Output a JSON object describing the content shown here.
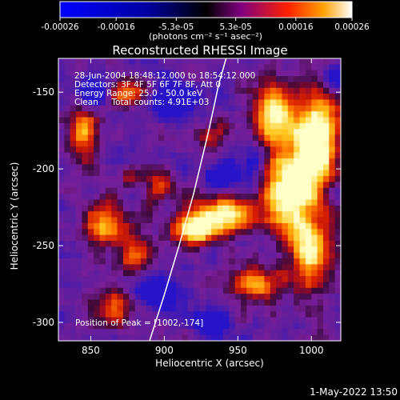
{
  "chart_data": {
    "type": "heatmap",
    "title": "Reconstructed RHESSI Image",
    "xlabel": "Heliocentric X (arcsec)",
    "ylabel": "Heliocentric Y (arcsec)",
    "xlim": [
      828,
      1020
    ],
    "ylim": [
      -312,
      -128
    ],
    "x_ticks": [
      850,
      900,
      950,
      1000
    ],
    "y_ticks": [
      -300,
      -250,
      -200,
      -150
    ],
    "colorbar": {
      "range": [
        -0.00026,
        0.00026
      ],
      "tick_values": [
        -0.00026,
        -0.00016,
        -5.3e-05,
        5.3e-05,
        0.00016,
        0.00026
      ],
      "tick_labels": [
        "-0.00026",
        "-0.00016",
        "-5.3e-05",
        "5.3e-05",
        "0.00016",
        "0.00026"
      ],
      "unit_label": "(photons cm⁻² s⁻¹ asec⁻²)",
      "colors": [
        "#0000ff",
        "#000000",
        "#800080",
        "#ff0000",
        "#ffa000",
        "#ffffff"
      ]
    },
    "annotations": [
      "28-Jun-2004 18:48:12.000 to 18:54:12.000",
      "Detectors: 3F 4F 5F 6F 7F 8F, Att 0",
      "Energy Range: 25.0 - 50.0 keV",
      "Clean     Total counts: 4.91E+03"
    ],
    "peak_label": "Position of Peak = [1002,-174]",
    "peak": [
      1002,
      -174
    ],
    "limb_points": [
      [
        890,
        -312
      ],
      [
        900,
        -282
      ],
      [
        910,
        -250
      ],
      [
        920,
        -216
      ],
      [
        930,
        -176
      ],
      [
        937,
        -145
      ],
      [
        942,
        -128
      ]
    ],
    "bright_regions": [
      {
        "x": 1005,
        "y": -180,
        "amp": 1.0,
        "rx": 14,
        "ry": 30
      },
      {
        "x": 985,
        "y": -215,
        "amp": 0.9,
        "rx": 18,
        "ry": 28
      },
      {
        "x": 940,
        "y": -230,
        "amp": 0.85,
        "rx": 22,
        "ry": 12
      },
      {
        "x": 920,
        "y": -240,
        "amp": 0.75,
        "rx": 14,
        "ry": 10
      },
      {
        "x": 975,
        "y": -165,
        "amp": 0.7,
        "rx": 16,
        "ry": 20
      },
      {
        "x": 1000,
        "y": -255,
        "amp": 0.75,
        "rx": 14,
        "ry": 22
      },
      {
        "x": 960,
        "y": -275,
        "amp": 0.55,
        "rx": 20,
        "ry": 12
      },
      {
        "x": 860,
        "y": -235,
        "amp": 0.55,
        "rx": 16,
        "ry": 14
      },
      {
        "x": 880,
        "y": -255,
        "amp": 0.5,
        "rx": 12,
        "ry": 12
      },
      {
        "x": 865,
        "y": -290,
        "amp": 0.5,
        "rx": 14,
        "ry": 14
      },
      {
        "x": 845,
        "y": -175,
        "amp": 0.55,
        "rx": 10,
        "ry": 20
      },
      {
        "x": 875,
        "y": -150,
        "amp": 0.5,
        "rx": 12,
        "ry": 10
      },
      {
        "x": 895,
        "y": -210,
        "amp": 0.4,
        "rx": 10,
        "ry": 12
      },
      {
        "x": 875,
        "y": -205,
        "amp": 0.35,
        "rx": 8,
        "ry": 8
      },
      {
        "x": 935,
        "y": -180,
        "amp": 0.3,
        "rx": 10,
        "ry": 12
      }
    ],
    "dark_regions": [
      {
        "x": 850,
        "y": -150,
        "amp": 0.6,
        "rx": 10,
        "ry": 10
      },
      {
        "x": 905,
        "y": -155,
        "amp": 0.5,
        "rx": 14,
        "ry": 10
      },
      {
        "x": 940,
        "y": -205,
        "amp": 0.55,
        "rx": 12,
        "ry": 8
      },
      {
        "x": 895,
        "y": -280,
        "amp": 0.6,
        "rx": 14,
        "ry": 10
      },
      {
        "x": 930,
        "y": -300,
        "amp": 0.5,
        "rx": 12,
        "ry": 8
      },
      {
        "x": 960,
        "y": -195,
        "amp": 0.4,
        "rx": 8,
        "ry": 10
      },
      {
        "x": 1015,
        "y": -140,
        "amp": 0.4,
        "rx": 8,
        "ry": 8
      }
    ]
  },
  "footer": {
    "timestamp": "1-May-2022 13:50"
  }
}
